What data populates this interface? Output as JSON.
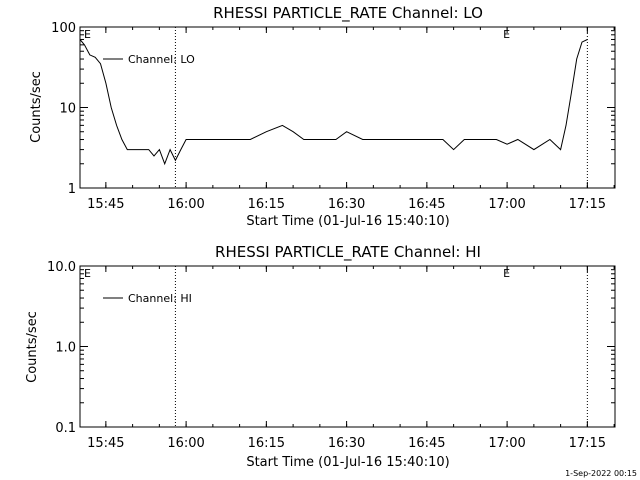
{
  "chart_data": [
    {
      "type": "line",
      "title": "RHESSI PARTICLE_RATE Channel: LO",
      "xlabel": "Start Time (01-Jul-16 15:40:10)",
      "ylabel": "Counts/sec",
      "yscale": "log",
      "ylim": [
        1,
        100
      ],
      "xlim": [
        "15:40:10",
        "17:20:10"
      ],
      "x_ticks": [
        "15:45",
        "16:00",
        "16:15",
        "16:30",
        "16:45",
        "17:00",
        "17:15"
      ],
      "y_ticks": [
        "1",
        "10",
        "100"
      ],
      "event_markers": [
        {
          "time": "15:40:10",
          "label": "E"
        },
        {
          "time": "17:00",
          "label": "E"
        }
      ],
      "dotted_lines": [
        "15:58",
        "17:15"
      ],
      "series": [
        {
          "name": "Channel: LO",
          "x": [
            "15:40:10",
            "15:41",
            "15:42",
            "15:43",
            "15:44",
            "15:45",
            "15:46",
            "15:47",
            "15:48",
            "15:49",
            "15:50",
            "15:51",
            "15:52",
            "15:53",
            "15:54",
            "15:55",
            "15:56",
            "15:57",
            "15:58",
            "15:59",
            "16:00",
            "16:03",
            "16:06",
            "16:08",
            "16:10",
            "16:12",
            "16:15",
            "16:18",
            "16:20",
            "16:22",
            "16:25",
            "16:28",
            "16:30",
            "16:33",
            "16:35",
            "16:38",
            "16:40",
            "16:42",
            "16:45",
            "16:48",
            "16:50",
            "16:52",
            "16:55",
            "16:58",
            "17:00",
            "17:02",
            "17:05",
            "17:08",
            "17:10",
            "17:11",
            "17:12",
            "17:13",
            "17:14",
            "17:15"
          ],
          "y": [
            70,
            60,
            45,
            42,
            35,
            20,
            10,
            6,
            4,
            3,
            3,
            3,
            3,
            3,
            2.5,
            3,
            2,
            3,
            2.2,
            3,
            4,
            4,
            4,
            4,
            4,
            4,
            5,
            6,
            5,
            4,
            4,
            4,
            5,
            4,
            4,
            4,
            4,
            4,
            4,
            4,
            3,
            4,
            4,
            4,
            3.5,
            4,
            3,
            4,
            3,
            6,
            15,
            40,
            65,
            70
          ]
        }
      ]
    },
    {
      "type": "line",
      "title": "RHESSI PARTICLE_RATE Channel: HI",
      "xlabel": "Start Time (01-Jul-16 15:40:10)",
      "ylabel": "Counts/sec",
      "yscale": "log",
      "ylim": [
        0.1,
        10
      ],
      "xlim": [
        "15:40:10",
        "17:20:10"
      ],
      "x_ticks": [
        "15:45",
        "16:00",
        "16:15",
        "16:30",
        "16:45",
        "17:00",
        "17:15"
      ],
      "y_ticks": [
        "0.1",
        "1.0",
        "10.0"
      ],
      "event_markers": [
        {
          "time": "15:40:10",
          "label": "E"
        },
        {
          "time": "17:00",
          "label": "E"
        }
      ],
      "dotted_lines": [
        "15:58",
        "17:15"
      ],
      "series": [
        {
          "name": "Channel: HI",
          "x": [],
          "y": []
        }
      ]
    }
  ],
  "footer": {
    "timestamp": "1-Sep-2022 00:15"
  }
}
